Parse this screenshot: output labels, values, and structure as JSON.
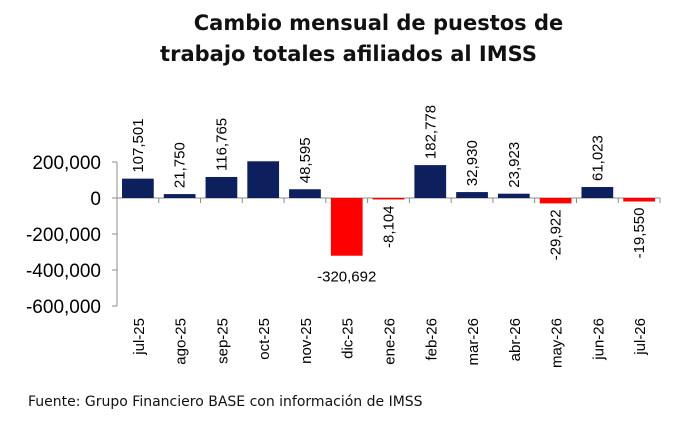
{
  "chart_data": {
    "type": "bar",
    "title_line1": "Cambio mensual de puestos de",
    "title_line2": "trabajo totales afiliados al IMSS",
    "categories": [
      "jul-25",
      "ago-25",
      "sep-25",
      "oct-25",
      "nov-25",
      "dic-25",
      "ene-26",
      "feb-26",
      "mar-26",
      "abr-26",
      "may-26",
      "jun-26",
      "jul-26"
    ],
    "values": [
      107501,
      21750,
      116765,
      204000,
      48595,
      -320692,
      -8104,
      182778,
      32930,
      23923,
      -29922,
      61023,
      -19550
    ],
    "data_labels": [
      "107,501",
      "21,750",
      "116,765",
      "",
      "48,595",
      "-320,692",
      "-8,104",
      "182,778",
      "32,930",
      "23,923",
      "-29,922",
      "61,023",
      "-19,550"
    ],
    "yticks": [
      "200,000",
      "0",
      "-200,000",
      "-400,000",
      "-600,000"
    ],
    "ytick_values": [
      200000,
      0,
      -200000,
      -400000,
      -600000
    ],
    "ylim": [
      -600000,
      200000
    ],
    "colors": {
      "positive": "#0d1f5c",
      "negative": "#ff0000"
    },
    "grid": false,
    "legend": "none"
  },
  "source": "Fuente: Grupo Financiero BASE con información de IMSS"
}
